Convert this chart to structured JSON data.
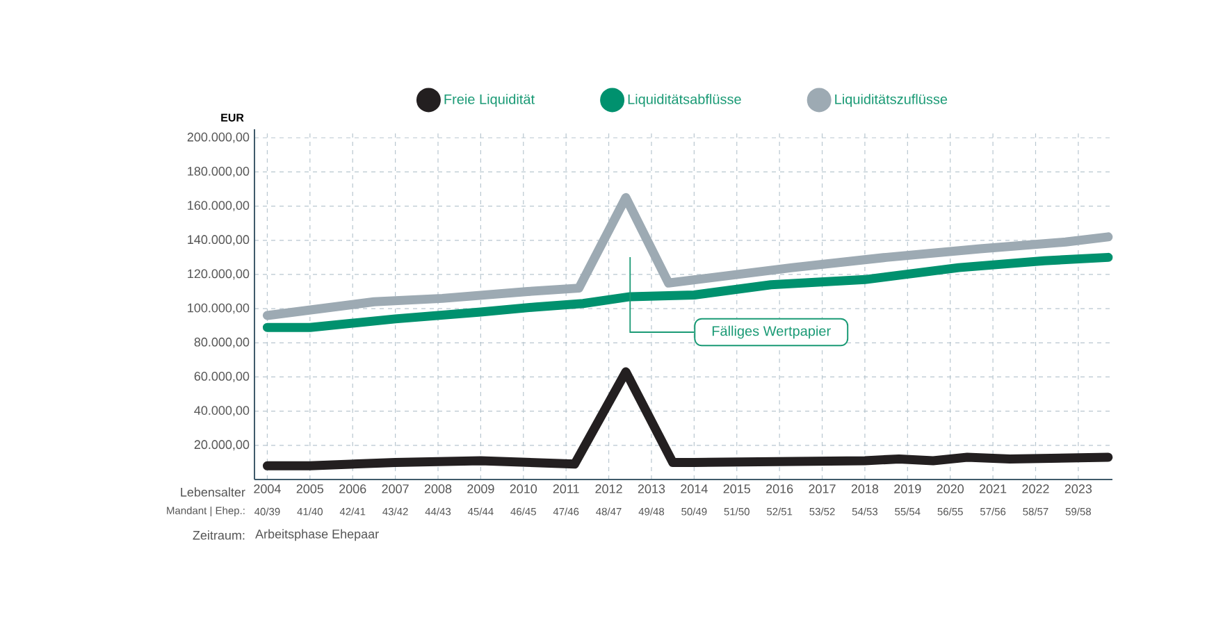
{
  "chart_data": {
    "type": "line",
    "xlabel": "Lebensalter",
    "ylabel": "EUR",
    "xlim": [
      2003.7,
      2023.8
    ],
    "ylim": [
      0,
      205000
    ],
    "xticks": [
      2004,
      2005,
      2006,
      2007,
      2008,
      2009,
      2010,
      2011,
      2012,
      2013,
      2014,
      2015,
      2016,
      2017,
      2018,
      2019,
      2020,
      2021,
      2022,
      2023
    ],
    "yticks": [
      {
        "value": 20000,
        "label": "20.000,00"
      },
      {
        "value": 40000,
        "label": "40.000,00"
      },
      {
        "value": 60000,
        "label": "60.000,00"
      },
      {
        "value": 80000,
        "label": "80.000,00"
      },
      {
        "value": 100000,
        "label": "100.000,00"
      },
      {
        "value": 120000,
        "label": "120.000,00"
      },
      {
        "value": 140000,
        "label": "140.000,00"
      },
      {
        "value": 160000,
        "label": "160.000,00"
      },
      {
        "value": 180000,
        "label": "180.000,00"
      },
      {
        "value": 200000,
        "label": "200.000,00"
      }
    ],
    "grid": true,
    "legend": "top",
    "line_style": "solid",
    "series": [
      {
        "name": "Freie Liquidität",
        "color": "#231f20",
        "x": [
          2004.0,
          2005.0,
          2007.0,
          2009.0,
          2011.2,
          2012.4,
          2013.5,
          2014.0,
          2018.0,
          2018.8,
          2019.6,
          2020.4,
          2021.4,
          2023.7
        ],
        "values": [
          8000,
          8000,
          10000,
          11000,
          9000,
          63000,
          10000,
          10000,
          11000,
          12000,
          11000,
          13000,
          12000,
          13000
        ]
      },
      {
        "name": "Liquiditätsabflüsse",
        "color": "#00916e",
        "x": [
          2004.0,
          2005.0,
          2007.0,
          2009.0,
          2010.3,
          2011.4,
          2012.5,
          2014.0,
          2015.8,
          2018.0,
          2020.2,
          2022.2,
          2023.7
        ],
        "values": [
          89000,
          89000,
          94000,
          98000,
          101000,
          103000,
          107000,
          108000,
          114000,
          117000,
          124000,
          128000,
          130000
        ]
      },
      {
        "name": "Liquiditätszuflüsse",
        "color": "#9daab3",
        "x": [
          2004.0,
          2006.5,
          2008.1,
          2010.1,
          2011.3,
          2012.4,
          2013.4,
          2016.3,
          2018.5,
          2020.7,
          2022.7,
          2023.7
        ],
        "values": [
          96000,
          104000,
          106000,
          110000,
          112000,
          165000,
          115000,
          124000,
          130000,
          135000,
          139000,
          142000
        ]
      }
    ],
    "ref_lines": [
      {
        "axis": "x",
        "value": 2012.5,
        "label": "Fälliges Wertpapier",
        "color": "#1a9a75"
      }
    ],
    "annotations": [
      "Zeitraum:",
      "Arbeitsphase Ehepaar",
      "Mandant | Ehep.:",
      "40/39",
      "41/40",
      "42/41",
      "43/42",
      "44/43",
      "45/44",
      "46/45",
      "47/46",
      "48/47",
      "49/48",
      "50/49",
      "51/50",
      "52/51",
      "53/52",
      "54/53",
      "55/54",
      "56/55",
      "57/56",
      "58/57",
      "59/58"
    ]
  }
}
